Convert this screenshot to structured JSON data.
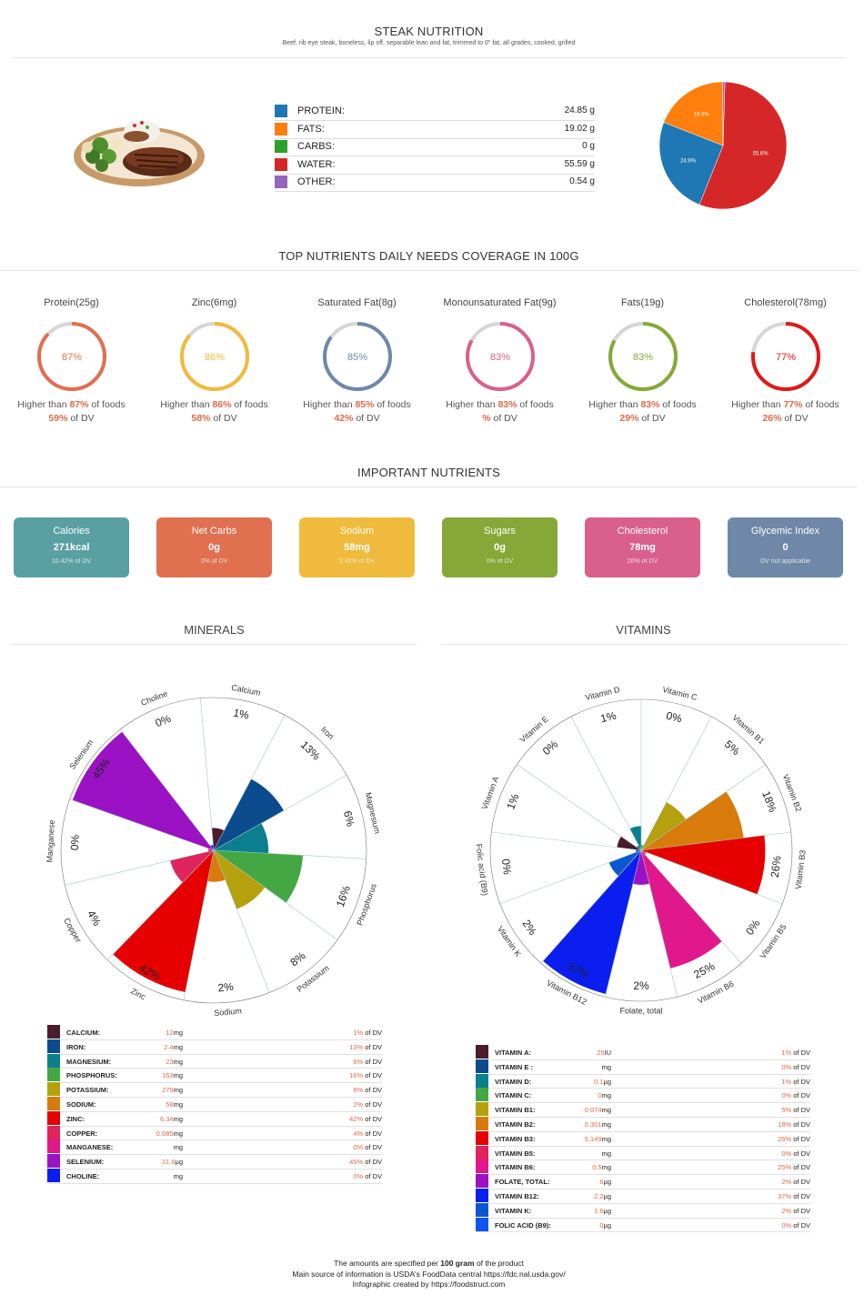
{
  "header": {
    "title": "STEAK NUTRITION",
    "subtitle": "Beef, rib eye steak, boneless, lip off, separable lean and fat, trimmed to 0\" fat, all grades, cooked, grilled"
  },
  "macros": [
    {
      "label": "PROTEIN:",
      "value": "24.85 g",
      "color": "#1f77b4"
    },
    {
      "label": "FATS:",
      "value": "19.02 g",
      "color": "#ff7f0e"
    },
    {
      "label": "CARBS:",
      "value": "0 g",
      "color": "#2ca02c"
    },
    {
      "label": "WATER:",
      "value": "55.59 g",
      "color": "#d62728"
    },
    {
      "label": "OTHER:",
      "value": "0.54 g",
      "color": "#9467bd"
    }
  ],
  "chart_data": [
    {
      "type": "pie",
      "categories": [
        "Protein",
        "Fats",
        "Carbs",
        "Water",
        "Other"
      ],
      "values": [
        24.85,
        19.02,
        0,
        55.59,
        0.54
      ],
      "colors": [
        "#1f77b4",
        "#ff7f0e",
        "#2ca02c",
        "#d62728",
        "#9467bd"
      ],
      "labels": [
        "24.9%",
        "19.0%",
        "",
        "55.6%",
        ""
      ]
    },
    {
      "type": "polar-area",
      "name": "minerals",
      "categories": [
        "Calcium",
        "Iron",
        "Magnesium",
        "Phosphorus",
        "Potassium",
        "Sodium",
        "Zinc",
        "Copper",
        "Manganese",
        "Selenium",
        "Choline"
      ],
      "values": [
        1,
        13,
        6,
        16,
        8,
        2,
        42,
        4,
        0,
        45,
        0
      ],
      "labels": [
        "1%",
        "13%",
        "6%",
        "16%",
        "8%",
        "2%",
        "42%",
        "4%",
        "0%",
        "45%",
        "0%"
      ],
      "colors": [
        "#4a1c2c",
        "#0c4b8e",
        "#0b7f8e",
        "#43a843",
        "#b5a10d",
        "#d97b0a",
        "#e60000",
        "#e0245e",
        "#e0188c",
        "#9b11c4",
        "#0a1ef0"
      ]
    },
    {
      "type": "polar-area",
      "name": "vitamins",
      "categories": [
        "Vitamin C",
        "Vitamin B1",
        "Vitamin B2",
        "Vitamin B3",
        "Vitamin B5",
        "Vitamin B6",
        "Folate, total",
        "Vitamin B12",
        "Vitamin K",
        "Folic acid (B9)",
        "Vitamin A",
        "Vitamin E",
        "Vitamin D"
      ],
      "values": [
        0,
        5,
        18,
        26,
        0,
        25,
        2,
        37,
        2,
        0,
        1,
        0,
        1
      ],
      "labels": [
        "0%",
        "5%",
        "18%",
        "26%",
        "0%",
        "25%",
        "2%",
        "37%",
        "2%",
        "0%",
        "1%",
        "0%",
        "1%"
      ],
      "colors": [
        "#43a843",
        "#b5a10d",
        "#d97b0a",
        "#e60000",
        "#e0245e",
        "#e0188c",
        "#9b11c4",
        "#0a1ef0",
        "#0b57d0",
        "#1155ee",
        "#4a1c2c",
        "#0c4b8e",
        "#0b7f8e"
      ]
    },
    {
      "type": "donut-gauge",
      "name": "daily coverage",
      "categories": [
        "Protein(25g)",
        "Zinc(6mg)",
        "Saturated Fat(8g)",
        "Monounsaturated Fat(9g)",
        "Fats(19g)",
        "Cholesterol(78mg)"
      ],
      "values": [
        87,
        86,
        85,
        83,
        83,
        77
      ]
    }
  ],
  "coverage": {
    "title": "TOP NUTRIENTS DAILY NEEDS COVERAGE IN 100G",
    "items": [
      {
        "label": "Protein(25g)",
        "pct": "87%",
        "value": 87,
        "color": "#e07050",
        "higher_pre": "Higher than ",
        "higher_pct": "87%",
        "higher_post": " of foods",
        "dv_pct": "59%",
        "dv_post": " of DV"
      },
      {
        "label": "Zinc(6mg)",
        "pct": "86%",
        "value": 86,
        "color": "#f0bb3c",
        "higher_pre": "Higher than ",
        "higher_pct": "86%",
        "higher_post": " of foods",
        "dv_pct": "58%",
        "dv_post": " of DV"
      },
      {
        "label": "Saturated Fat(8g)",
        "pct": "85%",
        "value": 85,
        "color": "#6f88a8",
        "higher_pre": "Higher than ",
        "higher_pct": "85%",
        "higher_post": " of foods",
        "dv_pct": "42%",
        "dv_post": " of DV"
      },
      {
        "label": "Monounsaturated Fat(9g)",
        "pct": "83%",
        "value": 83,
        "color": "#d9608a",
        "higher_pre": "Higher than ",
        "higher_pct": "83%",
        "higher_post": " of foods",
        "dv_pct": "%",
        "dv_post": " of DV"
      },
      {
        "label": "Fats(19g)",
        "pct": "83%",
        "value": 83,
        "color": "#86a838",
        "higher_pre": "Higher than ",
        "higher_pct": "83%",
        "higher_post": " of foods",
        "dv_pct": "29%",
        "dv_post": " of DV"
      },
      {
        "label": "Cholesterol(78mg)",
        "pct": "77%",
        "value": 77,
        "color": "#e01818",
        "higher_pre": "Higher than ",
        "higher_pct": "77%",
        "higher_post": " of foods",
        "dv_pct": "26%",
        "dv_post": " of DV"
      }
    ]
  },
  "important": {
    "title": "IMPORTANT NUTRIENTS",
    "cards": [
      {
        "label": "Calories",
        "value": "271kcal",
        "dv": "10.42% of DV",
        "color": "#5a9fa2"
      },
      {
        "label": "Net Carbs",
        "value": "0g",
        "dv": "0% of DV",
        "color": "#e07050"
      },
      {
        "label": "Sodium",
        "value": "58mg",
        "dv": "2.42% of DV",
        "color": "#f0bb3c"
      },
      {
        "label": "Sugars",
        "value": "0g",
        "dv": "0% of DV",
        "color": "#86a838"
      },
      {
        "label": "Cholesterol",
        "value": "78mg",
        "dv": "26% of DV",
        "color": "#d9608a"
      },
      {
        "label": "Glycemic Index",
        "value": "0",
        "dv": "DV not applicable",
        "color": "#6f88a8"
      }
    ]
  },
  "minerals": {
    "title": "MINERALS",
    "rows": [
      {
        "name": "CALCIUM:",
        "amount": "12",
        "unit": "mg",
        "dv": "1%",
        "dv_post": " of DV",
        "color": "#4a1c2c"
      },
      {
        "name": "IRON:",
        "amount": "2.4",
        "unit": "mg",
        "dv": "13%",
        "dv_post": " of DV",
        "color": "#0c4b8e"
      },
      {
        "name": "MAGNESIUM:",
        "amount": "23",
        "unit": "mg",
        "dv": "6%",
        "dv_post": " of DV",
        "color": "#0b7f8e"
      },
      {
        "name": "PHOSPHORUS:",
        "amount": "163",
        "unit": "mg",
        "dv": "16%",
        "dv_post": " of DV",
        "color": "#43a843"
      },
      {
        "name": "POTASSIUM:",
        "amount": "279",
        "unit": "mg",
        "dv": "8%",
        "dv_post": " of DV",
        "color": "#b5a10d"
      },
      {
        "name": "SODIUM:",
        "amount": "58",
        "unit": "mg",
        "dv": "2%",
        "dv_post": " of DV",
        "color": "#d97b0a"
      },
      {
        "name": "ZINC:",
        "amount": "6.34",
        "unit": "mg",
        "dv": "42%",
        "dv_post": " of DV",
        "color": "#e60000"
      },
      {
        "name": "COPPER:",
        "amount": "0.085",
        "unit": "mg",
        "dv": "4%",
        "dv_post": " of DV",
        "color": "#e0245e"
      },
      {
        "name": "MANGANESE:",
        "amount": "",
        "unit": "mg",
        "dv": "0%",
        "dv_post": " of DV",
        "color": "#e0188c"
      },
      {
        "name": "SELENIUM:",
        "amount": "31.8",
        "unit": "µg",
        "dv": "45%",
        "dv_post": " of DV",
        "color": "#9b11c4"
      },
      {
        "name": "CHOLINE:",
        "amount": "",
        "unit": "mg",
        "dv": "0%",
        "dv_post": " of DV",
        "color": "#0a1ef0"
      }
    ]
  },
  "vitamins": {
    "title": "VITAMINS",
    "rows": [
      {
        "name": "VITAMIN A:",
        "amount": "25",
        "unit": "IU",
        "dv": "1%",
        "dv_post": " of DV",
        "color": "#4a1c2c"
      },
      {
        "name": "VITAMIN E :",
        "amount": "",
        "unit": "mg",
        "dv": "0%",
        "dv_post": " of DV",
        "color": "#0c4b8e"
      },
      {
        "name": "VITAMIN D:",
        "amount": "0.1",
        "unit": "µg",
        "dv": "1%",
        "dv_post": " of DV",
        "color": "#0b7f8e"
      },
      {
        "name": "VITAMIN C:",
        "amount": "0",
        "unit": "mg",
        "dv": "0%",
        "dv_post": " of DV",
        "color": "#43a843"
      },
      {
        "name": "VITAMIN B1:",
        "amount": "0.074",
        "unit": "mg",
        "dv": "5%",
        "dv_post": " of DV",
        "color": "#b5a10d"
      },
      {
        "name": "VITAMIN B2:",
        "amount": "0.301",
        "unit": "mg",
        "dv": "18%",
        "dv_post": " of DV",
        "color": "#d97b0a"
      },
      {
        "name": "VITAMIN B3:",
        "amount": "5.149",
        "unit": "mg",
        "dv": "26%",
        "dv_post": " of DV",
        "color": "#e60000"
      },
      {
        "name": "VITAMIN B5:",
        "amount": "",
        "unit": "mg",
        "dv": "0%",
        "dv_post": " of DV",
        "color": "#e0245e"
      },
      {
        "name": "VITAMIN B6:",
        "amount": "0.5",
        "unit": "mg",
        "dv": "25%",
        "dv_post": " of DV",
        "color": "#e0188c"
      },
      {
        "name": "FOLATE, TOTAL:",
        "amount": "6",
        "unit": "µg",
        "dv": "2%",
        "dv_post": " of DV",
        "color": "#9b11c4"
      },
      {
        "name": "VITAMIN B12:",
        "amount": "2.2",
        "unit": "µg",
        "dv": "37%",
        "dv_post": " of DV",
        "color": "#0a1ef0"
      },
      {
        "name": "VITAMIN K:",
        "amount": "1.6",
        "unit": "µg",
        "dv": "2%",
        "dv_post": " of DV",
        "color": "#0b57d0"
      },
      {
        "name": "FOLIC ACID (B9):",
        "amount": "0",
        "unit": "µg",
        "dv": "0%",
        "dv_post": " of DV",
        "color": "#1155ee"
      }
    ]
  },
  "footer": {
    "line1_pre": "The amounts are specified per ",
    "line1_bold": "100 gram",
    "line1_post": " of the product",
    "line2": "Main source of information is USDA's FoodData central https://fdc.nal.usda.gov/",
    "line3": "Infographic created by https://foodstruct.com"
  }
}
